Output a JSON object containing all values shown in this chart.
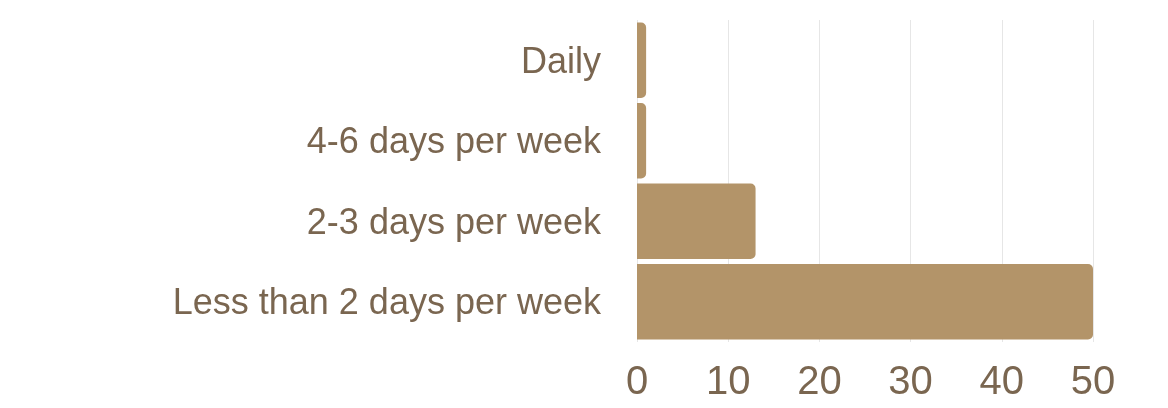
{
  "chart_data": {
    "type": "bar",
    "orientation": "horizontal",
    "categories": [
      "Daily",
      "4-6 days per week",
      "2-3 days per week",
      "Less than 2 days per week"
    ],
    "values": [
      1,
      1,
      13,
      50
    ],
    "color": "#b39469",
    "xlim": [
      0,
      50
    ],
    "xticks": [
      0,
      10,
      20,
      30,
      40,
      50
    ],
    "grid": "x"
  }
}
